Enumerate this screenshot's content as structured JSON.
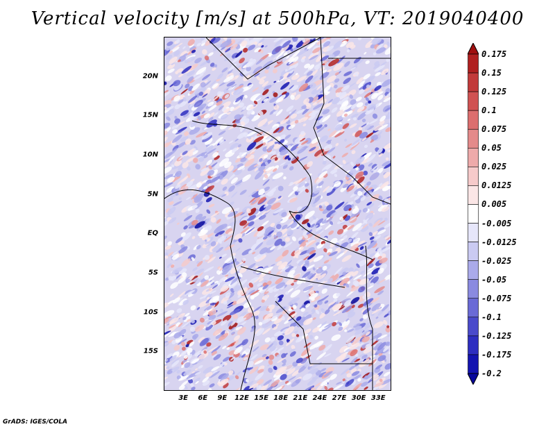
{
  "title": "Vertical velocity [m/s] at 500hPa, VT: 2019040400",
  "credit": "GrADS: IGES/COLA",
  "map": {
    "lat_labels": [
      "20N",
      "15N",
      "10N",
      "5N",
      "EQ",
      "5S",
      "10S",
      "15S"
    ],
    "lat_values": [
      20,
      15,
      10,
      5,
      0,
      -5,
      -10,
      -15
    ],
    "lon_labels": [
      "3E",
      "6E",
      "9E",
      "12E",
      "15E",
      "18E",
      "21E",
      "24E",
      "27E",
      "30E",
      "33E"
    ],
    "lon_values": [
      3,
      6,
      9,
      12,
      15,
      18,
      21,
      24,
      27,
      30,
      33
    ],
    "lon_range": [
      0,
      35
    ],
    "lat_range": [
      -20,
      25
    ]
  },
  "colorbar": {
    "levels": [
      "0.175",
      "0.15",
      "0.125",
      "0.1",
      "0.075",
      "0.05",
      "0.025",
      "0.0125",
      "0.005",
      "-0.005",
      "-0.0125",
      "-0.025",
      "-0.05",
      "-0.075",
      "-0.1",
      "-0.125",
      "-0.175",
      "-0.2"
    ],
    "colors": [
      "#a01010",
      "#b02020",
      "#c23a3a",
      "#d05252",
      "#dc6e6e",
      "#e48a8a",
      "#eeaaaa",
      "#f6caca",
      "#fbe6e6",
      "#ffffff",
      "#e6e6fa",
      "#cacaf2",
      "#aaaaea",
      "#8a8ae0",
      "#6a6ad6",
      "#4a4acb",
      "#2e2ec0",
      "#1414b0",
      "#08089c"
    ]
  }
}
